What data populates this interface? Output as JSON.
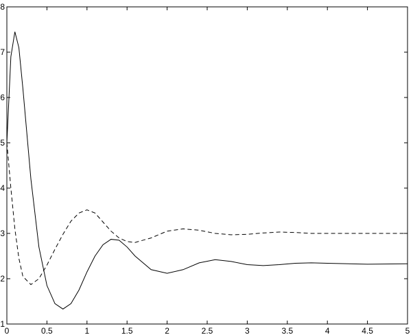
{
  "chart_data": {
    "type": "line",
    "x": [
      0,
      0.05,
      0.1,
      0.15,
      0.2,
      0.3,
      0.4,
      0.5,
      0.6,
      0.7,
      0.8,
      0.9,
      1.0,
      1.1,
      1.2,
      1.3,
      1.4,
      1.5,
      1.6,
      1.8,
      2.0,
      2.2,
      2.4,
      2.6,
      2.8,
      3.0,
      3.2,
      3.4,
      3.6,
      3.8,
      4.0,
      4.5,
      5.0
    ],
    "series": [
      {
        "color": "#000000",
        "style": "solid",
        "values": [
          5.0,
          6.9,
          7.45,
          7.1,
          6.2,
          4.2,
          2.7,
          1.85,
          1.45,
          1.33,
          1.45,
          1.75,
          2.15,
          2.5,
          2.75,
          2.87,
          2.85,
          2.7,
          2.5,
          2.2,
          2.12,
          2.2,
          2.35,
          2.42,
          2.38,
          2.31,
          2.29,
          2.31,
          2.34,
          2.35,
          2.34,
          2.32,
          2.33
        ]
      },
      {
        "color": "#000000",
        "style": "dashed",
        "values": [
          5.0,
          4.0,
          3.1,
          2.45,
          2.05,
          1.87,
          2.0,
          2.3,
          2.65,
          2.98,
          3.27,
          3.45,
          3.52,
          3.45,
          3.25,
          3.05,
          2.9,
          2.82,
          2.8,
          2.9,
          3.05,
          3.1,
          3.07,
          3.0,
          2.97,
          2.98,
          3.01,
          3.03,
          3.02,
          3.0,
          3.0,
          3.0,
          3.0
        ]
      }
    ],
    "xlim": [
      0,
      5
    ],
    "xticks": [
      0,
      0.5,
      1,
      1.5,
      2,
      2.5,
      3,
      3.5,
      4,
      4.5,
      5
    ],
    "ylim": [
      1,
      8
    ],
    "yticks": [
      1,
      2,
      3,
      4,
      5,
      6,
      7,
      8
    ],
    "grid": false
  }
}
